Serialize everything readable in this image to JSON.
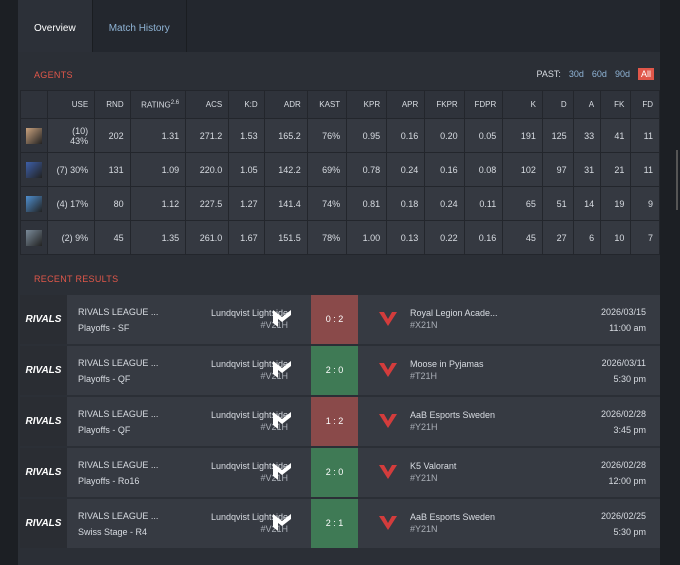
{
  "tabs": [
    "Overview",
    "Match History"
  ],
  "agents": {
    "title": "AGENTS",
    "past_label": "PAST:",
    "filters": [
      "30d",
      "60d",
      "90d",
      "All"
    ],
    "active_filter": 3,
    "columns": [
      "USE",
      "RND",
      "RATING",
      "ACS",
      "K:D",
      "ADR",
      "KAST",
      "KPR",
      "APR",
      "FKPR",
      "FDPR",
      "K",
      "D",
      "A",
      "FK",
      "FD"
    ],
    "rating_version": "2.6",
    "rows": [
      [
        "(10) 43%",
        "202",
        "1.31",
        "271.2",
        "1.53",
        "165.2",
        "76%",
        "0.95",
        "0.16",
        "0.20",
        "0.05",
        "191",
        "125",
        "33",
        "41",
        "11"
      ],
      [
        "(7) 30%",
        "131",
        "1.09",
        "220.0",
        "1.05",
        "142.2",
        "69%",
        "0.78",
        "0.24",
        "0.16",
        "0.08",
        "102",
        "97",
        "31",
        "21",
        "11"
      ],
      [
        "(4) 17%",
        "80",
        "1.12",
        "227.5",
        "1.27",
        "141.4",
        "74%",
        "0.81",
        "0.18",
        "0.24",
        "0.11",
        "65",
        "51",
        "14",
        "19",
        "9"
      ],
      [
        "(2) 9%",
        "45",
        "1.35",
        "261.0",
        "1.67",
        "151.5",
        "78%",
        "1.00",
        "0.13",
        "0.22",
        "0.16",
        "45",
        "27",
        "6",
        "10",
        "7"
      ]
    ]
  },
  "recent": {
    "title": "RECENT RESULTS",
    "matches": [
      {
        "event_logo": "RIVALS",
        "event": "RIVALS LEAGUE ...",
        "stage": "Playoffs - SF",
        "team": "Lundqvist Lightside",
        "team_tag": "#V21H",
        "score": "0 : 2",
        "win": false,
        "opponent": "Royal Legion Acade...",
        "opponent_tag": "#X21N",
        "date": "2026/03/15",
        "time": "11:00 am"
      },
      {
        "event_logo": "RIVALS",
        "event": "RIVALS LEAGUE ...",
        "stage": "Playoffs - QF",
        "team": "Lundqvist Lightside",
        "team_tag": "#V21H",
        "score": "2 : 0",
        "win": true,
        "opponent": "Moose in Pyjamas",
        "opponent_tag": "#T21H",
        "date": "2026/03/11",
        "time": "5:30 pm"
      },
      {
        "event_logo": "RIVALS",
        "event": "RIVALS LEAGUE ...",
        "stage": "Playoffs - QF",
        "team": "Lundqvist Lightside",
        "team_tag": "#V21H",
        "score": "1 : 2",
        "win": false,
        "opponent": "AaB Esports Sweden",
        "opponent_tag": "#Y21H",
        "date": "2026/02/28",
        "time": "3:45 pm"
      },
      {
        "event_logo": "RIVALS",
        "event": "RIVALS LEAGUE ...",
        "stage": "Playoffs - Ro16",
        "team": "Lundqvist Lightside",
        "team_tag": "#V21H",
        "score": "2 : 0",
        "win": true,
        "opponent": "K5 Valorant",
        "opponent_tag": "#Y21N",
        "date": "2026/02/28",
        "time": "12:00 pm"
      },
      {
        "event_logo": "RIVALS",
        "event": "RIVALS LEAGUE ...",
        "stage": "Swiss Stage - R4",
        "team": "Lundqvist Lightside",
        "team_tag": "#V21H",
        "score": "2 : 1",
        "win": true,
        "opponent": "AaB Esports Sweden",
        "opponent_tag": "#Y21N",
        "date": "2026/02/25",
        "time": "5:30 pm"
      }
    ]
  }
}
